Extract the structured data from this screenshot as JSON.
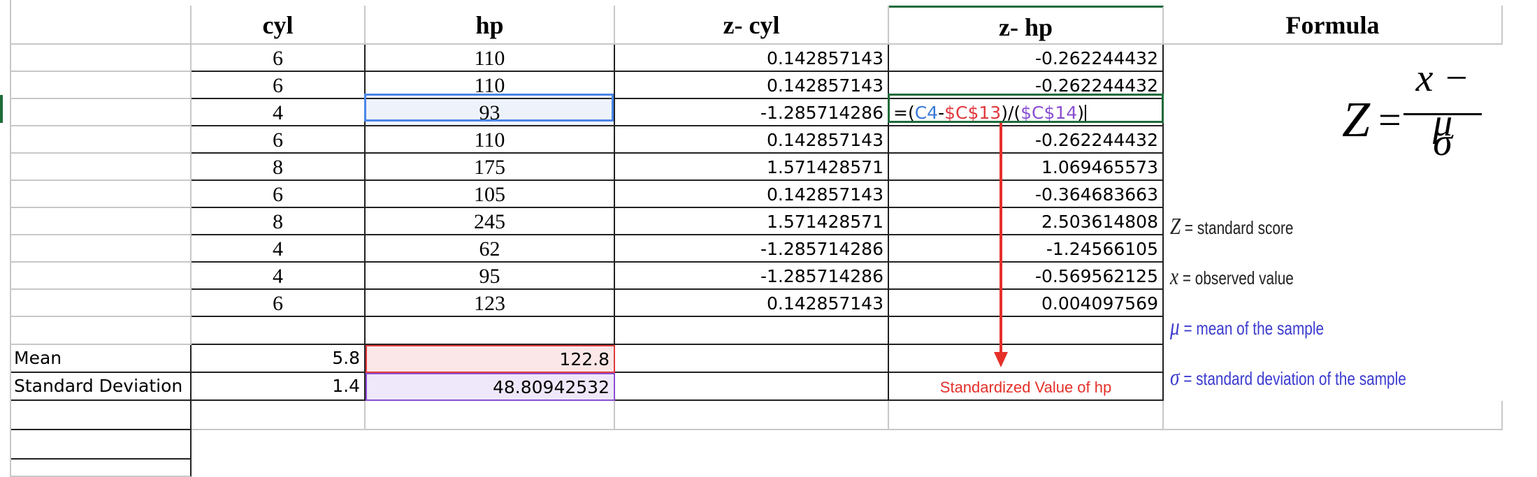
{
  "headers": {
    "cyl": "cyl",
    "hp": "hp",
    "z_cyl": "z- cyl",
    "z_hp": "z- hp",
    "formula": "Formula"
  },
  "rows": [
    {
      "cyl": "6",
      "hp": "110",
      "z_cyl": "0.142857143",
      "z_hp": "-0.262244432"
    },
    {
      "cyl": "6",
      "hp": "110",
      "z_cyl": "0.142857143",
      "z_hp": "-0.262244432"
    },
    {
      "cyl": "4",
      "hp": "93",
      "z_cyl": "-1.285714286",
      "z_hp": ""
    },
    {
      "cyl": "6",
      "hp": "110",
      "z_cyl": "0.142857143",
      "z_hp": "-0.262244432"
    },
    {
      "cyl": "8",
      "hp": "175",
      "z_cyl": "1.571428571",
      "z_hp": "1.069465573"
    },
    {
      "cyl": "6",
      "hp": "105",
      "z_cyl": "0.142857143",
      "z_hp": "-0.364683663"
    },
    {
      "cyl": "8",
      "hp": "245",
      "z_cyl": "1.571428571",
      "z_hp": "2.503614808"
    },
    {
      "cyl": "4",
      "hp": "62",
      "z_cyl": "-1.285714286",
      "z_hp": "-1.24566105"
    },
    {
      "cyl": "4",
      "hp": "95",
      "z_cyl": "-1.285714286",
      "z_hp": "-0.569562125"
    },
    {
      "cyl": "6",
      "hp": "123",
      "z_cyl": "0.142857143",
      "z_hp": "0.004097569"
    }
  ],
  "editing_formula": {
    "eq": "=(",
    "ref1": "C4",
    "minus": "-",
    "ref2": "$C$13",
    "mid": ")/(",
    "ref3": "$C$14",
    "close": ")"
  },
  "mean": {
    "label": "Mean",
    "cyl": "5.8",
    "hp": "122.8"
  },
  "std": {
    "label": "Standard Deviation",
    "cyl": "1.4",
    "hp": "48.80942532"
  },
  "annotation": "Standardized Value of hp",
  "formula_image": {
    "lhs": "Z",
    "eq": "=",
    "numerator": "x − μ",
    "denominator": "σ"
  },
  "legend": [
    {
      "symbol": "Z",
      "text": "= standard score"
    },
    {
      "symbol": "x",
      "text": "= observed value"
    },
    {
      "symbol": "μ",
      "text": "= mean of the sample"
    },
    {
      "symbol": "σ",
      "text": "= standard deviation of the sample"
    }
  ],
  "colors": {
    "ref_blue": "#3a78d8",
    "ref_red": "#e0393e",
    "ref_purple": "#8a4fd0",
    "active_green": "#1e6b3a",
    "arrow": "#e5302a",
    "legend_blue": "#3b3bd0"
  }
}
